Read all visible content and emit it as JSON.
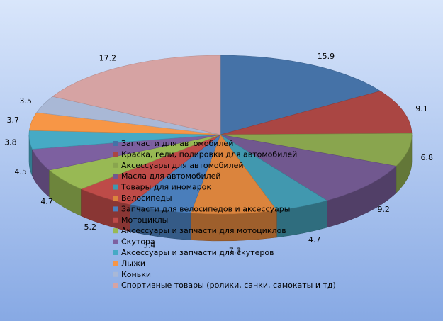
{
  "chart_data": {
    "type": "pie",
    "title": "",
    "legend_position": "center-overlay",
    "background": [
      "#d9e6fb",
      "#87a9e4"
    ],
    "categories": [
      "Запчасти для автомобилей",
      "Краска, гели, полировки для автомобилей",
      "Аксессуары для автомобилей",
      "Масла для автомобилей",
      "Товары для иномарок",
      "Велосипеды",
      "Запчасти для велосипедов и аксессуары",
      "Мотоциклы",
      "Аксессуары и запчасти для мотоциклов",
      "Скутера",
      "Аксессуары и запчасти для скутеров",
      "Лыжи",
      "Коньки",
      "Спортивные товары (ролики, санки, самокаты и тд)"
    ],
    "values": [
      15.9,
      9.1,
      6.8,
      9.2,
      4.7,
      7.3,
      5.4,
      5.2,
      4.7,
      4.5,
      3.8,
      3.7,
      3.5,
      17.2
    ],
    "value_labels": [
      "15.9",
      "9.1",
      "6.8",
      "9.2",
      "4.7",
      "7.3",
      "5.4",
      "5.2",
      "4.7",
      "4.5",
      "3.8",
      "3.7",
      "3.5",
      "17.2"
    ],
    "colors": [
      "#4572a7",
      "#aa4643",
      "#89a54e",
      "#71588f",
      "#4198af",
      "#db843d",
      "#4a7ebb",
      "#be4b48",
      "#98b954",
      "#7d60a0",
      "#46aac5",
      "#f79646",
      "#a9b8d6",
      "#d6a3a3"
    ]
  }
}
